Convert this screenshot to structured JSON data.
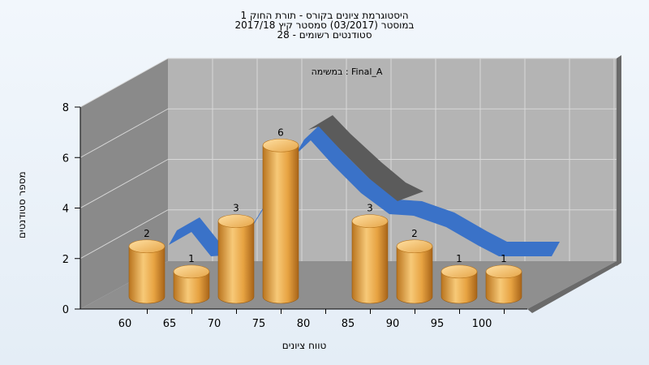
{
  "chart_data": {
    "type": "bar",
    "title_lines": [
      "היסטוגרמת ציונים בקורס - תורת החוק 1",
      "במוסטר  (03/2017)  סמסטר קיץ 2017/18",
      "סטודנטים רשומים - 28"
    ],
    "annotation": "במשימה : Final_A",
    "xlabel": "טווח ציונים",
    "ylabel": "מספר סטודנטים",
    "x_ticks": [
      "60",
      "65",
      "70",
      "75",
      "80",
      "85",
      "90",
      "95",
      "100"
    ],
    "y_ticks": [
      "0",
      "2",
      "4",
      "6",
      "8"
    ],
    "ylim": [
      0,
      8
    ],
    "grid": true,
    "bars": [
      {
        "x": 60,
        "value": 2
      },
      {
        "x": 65,
        "value": 1
      },
      {
        "x": 70,
        "value": 3
      },
      {
        "x": 75,
        "value": 6
      },
      {
        "x": 85,
        "value": 3
      },
      {
        "x": 90,
        "value": 2
      },
      {
        "x": 95,
        "value": 1
      },
      {
        "x": 100,
        "value": 1
      }
    ],
    "colors": {
      "bar": "#e8a640",
      "curve_front": "#3a72c8",
      "curve_back": "#5b5b5b",
      "floor": "#8f8f8f",
      "back_wall": "#b4b4b4",
      "side_wall": "#8a8a8a"
    }
  }
}
